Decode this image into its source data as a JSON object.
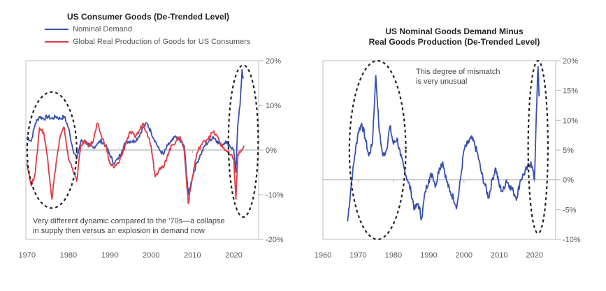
{
  "chart_data": [
    {
      "type": "line",
      "title": "US Consumer Goods (De-Trended Level)",
      "xlabel": "",
      "ylabel": "",
      "xlim": [
        1969.7,
        2026
      ],
      "ylim": [
        -20,
        20
      ],
      "grid": false,
      "legend": "top-left",
      "x_ticks": [
        "1970",
        "1980",
        "1990",
        "2000",
        "2010",
        "2020"
      ],
      "y_ticks": [
        "20%",
        "10%",
        "0%",
        "-10%",
        "-20%"
      ],
      "y_tick_values": [
        20,
        10,
        0,
        -10,
        -20
      ],
      "x_tick_values": [
        1970,
        1980,
        1990,
        2000,
        2010,
        2020
      ],
      "annotations": [
        "Very different dynamic compared to the '70s—a collapse",
        "in supply then versus an explosion in demand now"
      ],
      "highlight_ellipses": [
        {
          "x_center": 1976,
          "y_center": 0,
          "x_radius": 6,
          "y_radius": 13
        },
        {
          "x_center": 2022.3,
          "y_center": 2,
          "x_radius": 3.6,
          "y_radius": 17
        }
      ],
      "series": [
        {
          "name": "Nominal Demand",
          "color": "#3a50b0",
          "x": [
            1970,
            1971,
            1972,
            1973,
            1974,
            1975,
            1976,
            1977,
            1978,
            1979,
            1980,
            1981,
            1982,
            1983,
            1984,
            1985,
            1986,
            1987,
            1988,
            1989,
            1990,
            1991,
            1992,
            1993,
            1994,
            1995,
            1996,
            1997,
            1998,
            1999,
            2000,
            2001,
            2002,
            2003,
            2004,
            2005,
            2006,
            2007,
            2008,
            2009,
            2010,
            2011,
            2012,
            2013,
            2014,
            2015,
            2016,
            2017,
            2018,
            2019,
            2020,
            2020.5,
            2021,
            2021.5,
            2022,
            2022.3
          ],
          "values": [
            3,
            2,
            6,
            7.5,
            7,
            7.5,
            7,
            7.5,
            7,
            7.5,
            5,
            0.5,
            -2,
            2,
            2,
            1,
            0.5,
            1.5,
            2,
            1,
            -1,
            -3,
            -2,
            0,
            2,
            2,
            2,
            3,
            5,
            6,
            4,
            2,
            0,
            -1,
            1,
            2,
            3,
            2,
            1,
            -10,
            -6,
            -3,
            -1,
            1,
            2,
            3,
            2,
            1,
            2,
            1,
            0,
            -5,
            6,
            10,
            18,
            16
          ]
        },
        {
          "name": "Global Real Production of Goods for US Consumers",
          "color": "#e03a45",
          "x": [
            1970,
            1971,
            1972,
            1973,
            1974,
            1975,
            1976,
            1977,
            1978,
            1979,
            1980,
            1981,
            1982,
            1983,
            1984,
            1985,
            1986,
            1987,
            1988,
            1989,
            1990,
            1991,
            1992,
            1993,
            1994,
            1995,
            1996,
            1997,
            1998,
            1999,
            2000,
            2001,
            2002,
            2003,
            2004,
            2005,
            2006,
            2007,
            2008,
            2009,
            2010,
            2011,
            2012,
            2013,
            2014,
            2015,
            2016,
            2017,
            2018,
            2019,
            2020,
            2020.5,
            2021,
            2022,
            2022.5
          ],
          "values": [
            -3,
            -8,
            -5,
            5,
            4,
            -2,
            -11,
            -3,
            3,
            5,
            -2,
            -4,
            -7,
            1,
            2,
            1,
            2,
            6,
            3,
            1,
            -3,
            -4,
            -3,
            -1,
            2,
            4,
            3,
            4,
            6,
            4,
            1,
            -6,
            -4,
            -4,
            -1,
            1,
            2,
            3,
            0,
            -12,
            -6,
            -1,
            1,
            2,
            3,
            4,
            3,
            1,
            0,
            -1,
            -2,
            -11,
            -1,
            0,
            1
          ]
        }
      ]
    },
    {
      "type": "line",
      "title": "US Nominal Goods Demand Minus Real Goods Production (De-Trended Level)",
      "title_lines": [
        "US Nominal Goods Demand Minus",
        "Real Goods Production (De-Trended Level)"
      ],
      "xlabel": "",
      "ylabel": "",
      "xlim": [
        1960,
        2026
      ],
      "ylim": [
        -10,
        20
      ],
      "grid": false,
      "x_ticks": [
        "1960",
        "1970",
        "1980",
        "1990",
        "2000",
        "2010",
        "2020"
      ],
      "x_tick_values": [
        1960,
        1970,
        1980,
        1990,
        2000,
        2010,
        2020
      ],
      "y_ticks": [
        "20%",
        "15%",
        "10%",
        "5%",
        "0%",
        "-5%",
        "-10%"
      ],
      "y_tick_values": [
        20,
        15,
        10,
        5,
        0,
        -5,
        -10
      ],
      "annotations": [
        "This degree of mismatch",
        "is very unusual"
      ],
      "highlight_ellipses": [
        {
          "x_center": 1975.5,
          "y_center": 5,
          "x_radius": 8,
          "y_radius": 15
        },
        {
          "x_center": 2021,
          "y_center": 5.5,
          "x_radius": 2.8,
          "y_radius": 14.5
        }
      ],
      "series": [
        {
          "name": "Demand minus production",
          "color": "#3a50b0",
          "x": [
            1967,
            1968,
            1969,
            1970,
            1971,
            1972,
            1973,
            1974,
            1975,
            1976,
            1977,
            1978,
            1979,
            1980,
            1981,
            1982,
            1983,
            1984,
            1985,
            1986,
            1987,
            1988,
            1989,
            1990,
            1991,
            1992,
            1993,
            1994,
            1995,
            1996,
            1997,
            1998,
            1999,
            2000,
            2001,
            2002,
            2003,
            2004,
            2005,
            2006,
            2007,
            2008,
            2009,
            2010,
            2011,
            2012,
            2013,
            2014,
            2015,
            2016,
            2017,
            2018,
            2019,
            2020,
            2020.5,
            2021,
            2021.3
          ],
          "values": [
            -7,
            -1,
            4,
            8,
            9.5,
            7,
            4,
            6,
            17.5,
            8,
            4,
            5,
            9,
            6,
            7,
            4,
            2,
            0,
            -2,
            -5,
            -4,
            -6.5,
            -2,
            0,
            1,
            -1,
            2,
            3,
            0,
            -2,
            -3,
            -4.5,
            0,
            5,
            6,
            7,
            6,
            4,
            1,
            -1,
            -3,
            0,
            2,
            -1,
            -2,
            0,
            -1,
            -2,
            -3,
            0,
            1,
            2,
            3,
            0,
            11,
            19,
            14
          ]
        }
      ]
    }
  ]
}
